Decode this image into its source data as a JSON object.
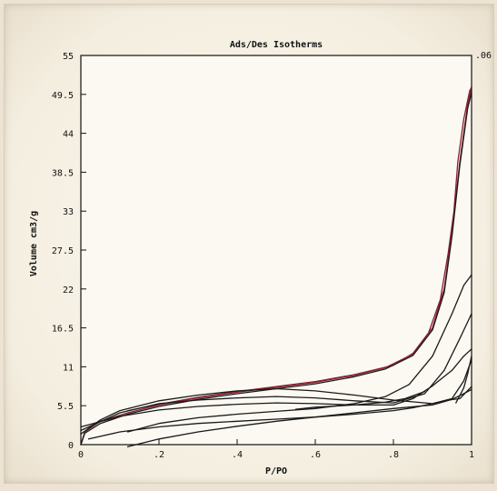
{
  "chart_data": {
    "type": "line",
    "title": "Ads/Des Isotherms",
    "xlabel": "P/PO",
    "ylabel": "Volume cm3/g",
    "xlim": [
      0,
      1
    ],
    "ylim": [
      0,
      55
    ],
    "x_ticks": [
      "0",
      ".2",
      ".4",
      ".6",
      ".8",
      "1"
    ],
    "y_ticks": [
      "0",
      "5.5",
      "11",
      "16.5",
      "22",
      "27.5",
      "33",
      "38.5",
      "44",
      "49.5",
      "55"
    ],
    "right_axis_label": ".06",
    "grid": false,
    "colors": {
      "red_series": "#8a2030",
      "black_series": "#1a1a1a",
      "plot_bg": "#fbf9f1"
    },
    "series": [
      {
        "color": "#8a2030",
        "points": [
          [
            0,
            0
          ],
          [
            0.01,
            1.8
          ],
          [
            0.05,
            3.3
          ],
          [
            0.12,
            4.5
          ],
          [
            0.2,
            5.6
          ],
          [
            0.3,
            6.6
          ],
          [
            0.4,
            7.4
          ],
          [
            0.5,
            8.1
          ],
          [
            0.6,
            8.8
          ],
          [
            0.7,
            9.8
          ],
          [
            0.78,
            10.9
          ],
          [
            0.85,
            12.8
          ],
          [
            0.9,
            16.5
          ],
          [
            0.93,
            22
          ],
          [
            0.95,
            30
          ],
          [
            0.97,
            40
          ],
          [
            0.99,
            48
          ],
          [
            1.0,
            50.5
          ]
        ]
      },
      {
        "color": "#8a2030",
        "points": [
          [
            1.0,
            50.5
          ],
          [
            0.995,
            50
          ],
          [
            0.98,
            46
          ],
          [
            0.965,
            40
          ],
          [
            0.955,
            33
          ],
          [
            0.94,
            27
          ],
          [
            0.92,
            20.5
          ],
          [
            0.89,
            15.8
          ],
          [
            0.85,
            12.9
          ],
          [
            0.8,
            11.2
          ],
          [
            0.7,
            9.9
          ],
          [
            0.6,
            8.9
          ],
          [
            0.5,
            8.2
          ],
          [
            0.4,
            7.5
          ],
          [
            0.3,
            6.7
          ],
          [
            0.2,
            5.7
          ],
          [
            0.12,
            4.8
          ]
        ]
      },
      {
        "color": "#1a1a1a",
        "points": [
          [
            0,
            0
          ],
          [
            0.01,
            1.6
          ],
          [
            0.05,
            3.0
          ],
          [
            0.12,
            4.3
          ],
          [
            0.2,
            5.4
          ],
          [
            0.3,
            6.4
          ],
          [
            0.4,
            7.2
          ],
          [
            0.5,
            7.9
          ],
          [
            0.6,
            8.6
          ],
          [
            0.7,
            9.6
          ],
          [
            0.78,
            10.7
          ],
          [
            0.85,
            12.6
          ],
          [
            0.9,
            16.2
          ],
          [
            0.93,
            21.5
          ],
          [
            0.95,
            29.5
          ],
          [
            0.97,
            39.5
          ],
          [
            0.99,
            47.5
          ],
          [
            1.0,
            49.8
          ]
        ]
      },
      {
        "color": "#1a1a1a",
        "points": [
          [
            0.0,
            1.5
          ],
          [
            0.05,
            3.5
          ],
          [
            0.1,
            4.8
          ],
          [
            0.2,
            6.2
          ],
          [
            0.3,
            7.0
          ],
          [
            0.4,
            7.6
          ],
          [
            0.5,
            7.9
          ],
          [
            0.6,
            7.6
          ],
          [
            0.7,
            7.0
          ],
          [
            0.8,
            6.3
          ],
          [
            0.9,
            5.8
          ],
          [
            0.95,
            6.5
          ],
          [
            0.98,
            9
          ],
          [
            1.0,
            12
          ]
        ]
      },
      {
        "color": "#1a1a1a",
        "points": [
          [
            0.0,
            2.0
          ],
          [
            0.1,
            4.5
          ],
          [
            0.2,
            5.8
          ],
          [
            0.3,
            6.3
          ],
          [
            0.4,
            6.6
          ],
          [
            0.5,
            6.8
          ],
          [
            0.6,
            6.6
          ],
          [
            0.7,
            6.2
          ],
          [
            0.8,
            5.9
          ],
          [
            0.88,
            7.2
          ],
          [
            0.93,
            10.5
          ],
          [
            0.97,
            15
          ],
          [
            1.0,
            18.5
          ]
        ]
      },
      {
        "color": "#1a1a1a",
        "points": [
          [
            0.12,
            1.8
          ],
          [
            0.2,
            3.0
          ],
          [
            0.3,
            3.8
          ],
          [
            0.4,
            4.3
          ],
          [
            0.5,
            4.7
          ],
          [
            0.6,
            5.1
          ],
          [
            0.7,
            5.8
          ],
          [
            0.78,
            6.8
          ],
          [
            0.84,
            8.5
          ],
          [
            0.9,
            12.5
          ],
          [
            0.95,
            18.5
          ],
          [
            0.98,
            22.5
          ],
          [
            1.0,
            24
          ]
        ]
      },
      {
        "color": "#1a1a1a",
        "points": [
          [
            0.0,
            2.5
          ],
          [
            0.1,
            4.0
          ],
          [
            0.2,
            4.9
          ],
          [
            0.3,
            5.4
          ],
          [
            0.4,
            5.7
          ],
          [
            0.5,
            5.9
          ],
          [
            0.6,
            5.8
          ],
          [
            0.7,
            5.6
          ],
          [
            0.8,
            5.6
          ],
          [
            0.85,
            6.5
          ],
          [
            0.9,
            8.3
          ],
          [
            0.95,
            10.5
          ],
          [
            0.98,
            12.5
          ],
          [
            1.0,
            13.5
          ]
        ]
      },
      {
        "color": "#1a1a1a",
        "points": [
          [
            0.02,
            0.8
          ],
          [
            0.1,
            1.8
          ],
          [
            0.2,
            2.5
          ],
          [
            0.3,
            3.0
          ],
          [
            0.4,
            3.3
          ],
          [
            0.5,
            3.6
          ],
          [
            0.6,
            3.9
          ],
          [
            0.7,
            4.3
          ],
          [
            0.8,
            4.8
          ],
          [
            0.85,
            5.2
          ],
          [
            0.9,
            5.8
          ],
          [
            0.94,
            6.3
          ],
          [
            0.97,
            6.5
          ],
          [
            1.0,
            8.2
          ]
        ]
      },
      {
        "color": "#1a1a1a",
        "points": [
          [
            0.12,
            -0.3
          ],
          [
            0.2,
            0.8
          ],
          [
            0.3,
            1.8
          ],
          [
            0.4,
            2.6
          ],
          [
            0.5,
            3.3
          ],
          [
            0.6,
            3.9
          ],
          [
            0.7,
            4.5
          ],
          [
            0.8,
            5.1
          ],
          [
            0.9,
            5.6
          ],
          [
            0.95,
            6.4
          ],
          [
            0.98,
            7.2
          ],
          [
            1.0,
            7.8
          ]
        ]
      },
      {
        "color": "#1a1a1a",
        "points": [
          [
            0.55,
            5.0
          ],
          [
            0.6,
            5.3
          ],
          [
            0.7,
            5.6
          ],
          [
            0.78,
            6.0
          ],
          [
            0.83,
            6.5
          ],
          [
            0.88,
            7.5
          ]
        ]
      },
      {
        "color": "#1a1a1a",
        "points": [
          [
            0.96,
            5.9
          ],
          [
            0.98,
            8
          ],
          [
            0.99,
            10
          ],
          [
            1.0,
            12.5
          ]
        ]
      }
    ]
  }
}
